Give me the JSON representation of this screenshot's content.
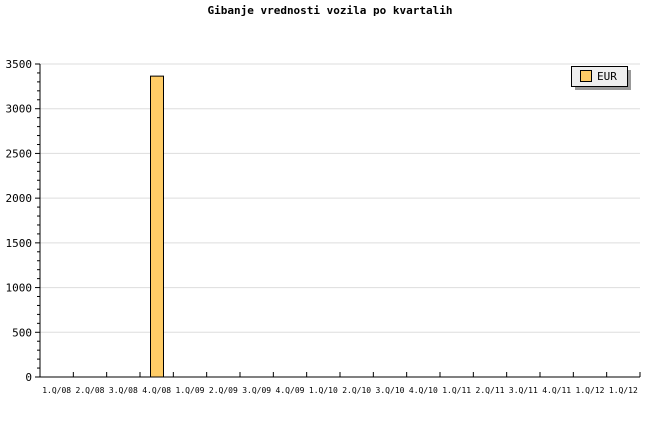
{
  "chart_data": {
    "type": "bar",
    "title": "Gibanje vrednosti vozila po kvartalih",
    "xlabel": "",
    "ylabel": "",
    "categories": [
      "1.Q/08",
      "2.Q/08",
      "3.Q/08",
      "4.Q/08",
      "1.Q/09",
      "2.Q/09",
      "3.Q/09",
      "4.Q/09",
      "1.Q/10",
      "2.Q/10",
      "3.Q/10",
      "4.Q/10",
      "1.Q/11",
      "2.Q/11",
      "3.Q/11",
      "4.Q/11",
      "1.Q/12",
      "1.Q/12"
    ],
    "series": [
      {
        "name": "EUR",
        "color": "#ffcc66",
        "values": [
          null,
          null,
          null,
          3370,
          null,
          null,
          null,
          null,
          null,
          null,
          null,
          null,
          null,
          null,
          null,
          null,
          null,
          null
        ]
      }
    ],
    "ylim": [
      0,
      3500
    ],
    "yticks": [
      0,
      500,
      1000,
      1500,
      2000,
      2500,
      3000,
      3500
    ],
    "grid": true,
    "legend": "top-right"
  }
}
